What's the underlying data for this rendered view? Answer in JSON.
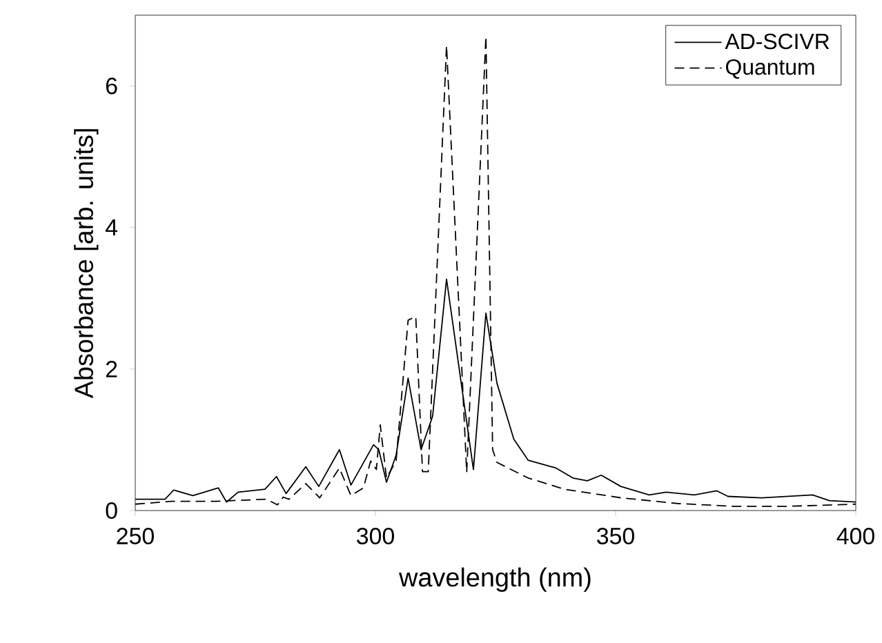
{
  "chart_data": {
    "type": "line",
    "xlabel": "wavelength (nm)",
    "ylabel": "Absorbance [arb. units]",
    "xlim": [
      250,
      400
    ],
    "xticks": [
      250,
      300,
      350,
      400
    ],
    "ylim": [
      0,
      7
    ],
    "yticks": [
      0,
      2,
      4,
      6
    ],
    "grid": false,
    "legend": "top right",
    "marker": "none",
    "series": [
      {
        "name": "AD-SCIVR",
        "color": "#000000",
        "line_style": "solid",
        "x": [
          250,
          256.2,
          258,
          262,
          267.3,
          269,
          271.4,
          277,
          279.4,
          281.4,
          285.5,
          288.2,
          292.5,
          294.9,
          299.6,
          300.7,
          302.3,
          304.3,
          306.8,
          309.5,
          311.9,
          314.8,
          320.4,
          323,
          325.3,
          328.8,
          331.8,
          337.6,
          341.1,
          344.1,
          347,
          351.1,
          357,
          360.5,
          366.4,
          371,
          373.4,
          380.4,
          391,
          394.5,
          400
        ],
        "values": [
          0.16,
          0.16,
          0.29,
          0.21,
          0.32,
          0.12,
          0.26,
          0.3,
          0.48,
          0.24,
          0.62,
          0.34,
          0.86,
          0.36,
          0.93,
          0.86,
          0.4,
          0.78,
          1.87,
          0.86,
          1.33,
          3.27,
          0.58,
          2.79,
          1.8,
          1.01,
          0.71,
          0.6,
          0.46,
          0.42,
          0.5,
          0.34,
          0.22,
          0.26,
          0.22,
          0.28,
          0.2,
          0.18,
          0.22,
          0.14,
          0.12
        ]
      },
      {
        "name": "Quantum",
        "color": "#000000",
        "line_style": "dashed",
        "x": [
          250,
          257.4,
          266.8,
          277.3,
          279.6,
          280.8,
          282,
          285.5,
          288.4,
          292.5,
          294.9,
          297.5,
          299,
          300.2,
          301,
          302.3,
          304.3,
          306.8,
          308.4,
          309.8,
          311,
          314.8,
          319,
          323,
          324.4,
          325.3,
          331.8,
          339.4,
          351.1,
          362.8,
          374.5,
          386.2,
          400
        ],
        "values": [
          0.09,
          0.13,
          0.13,
          0.16,
          0.08,
          0.19,
          0.16,
          0.38,
          0.18,
          0.6,
          0.21,
          0.32,
          0.7,
          0.58,
          1.21,
          0.46,
          0.7,
          2.69,
          2.74,
          0.55,
          0.55,
          6.57,
          0.54,
          6.7,
          0.86,
          0.68,
          0.46,
          0.3,
          0.18,
          0.1,
          0.06,
          0.06,
          0.09
        ]
      }
    ]
  }
}
